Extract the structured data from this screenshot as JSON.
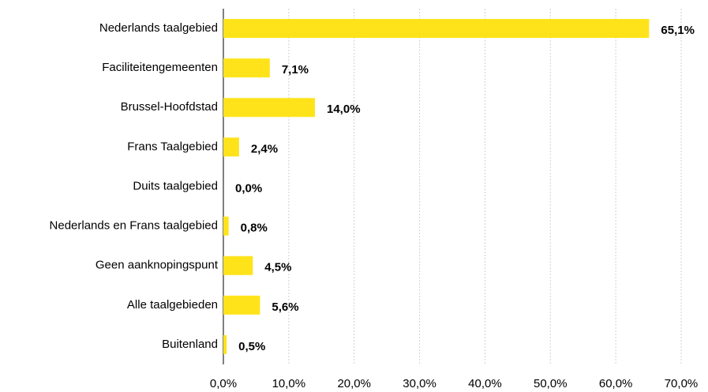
{
  "chart_data": {
    "type": "bar",
    "orientation": "horizontal",
    "categories": [
      "Nederlands taalgebied",
      "Faciliteitengemeenten",
      "Brussel-Hoofdstad",
      "Frans Taalgebied",
      "Duits taalgebied",
      "Nederlands en Frans taalgebied",
      "Geen aanknopingspunt",
      "Alle taalgebieden",
      "Buitenland"
    ],
    "values": [
      65.1,
      7.1,
      14.0,
      2.4,
      0.0,
      0.8,
      4.5,
      5.6,
      0.5
    ],
    "value_labels": [
      "65,1%",
      "7,1%",
      "14,0%",
      "2,4%",
      "0,0%",
      "0,8%",
      "4,5%",
      "5,6%",
      "0,5%"
    ],
    "color": "#ffe31a",
    "xlim": [
      0,
      70
    ],
    "xticks": [
      {
        "value": 0,
        "label": "0,0%"
      },
      {
        "value": 10,
        "label": "10,0%"
      },
      {
        "value": 20,
        "label": "20,0%"
      },
      {
        "value": 30,
        "label": "30,0%"
      },
      {
        "value": 40,
        "label": "40,0%"
      },
      {
        "value": 50,
        "label": "50,0%"
      },
      {
        "value": 60,
        "label": "60,0%"
      },
      {
        "value": 70,
        "label": "70,0%"
      }
    ],
    "grid": true
  }
}
